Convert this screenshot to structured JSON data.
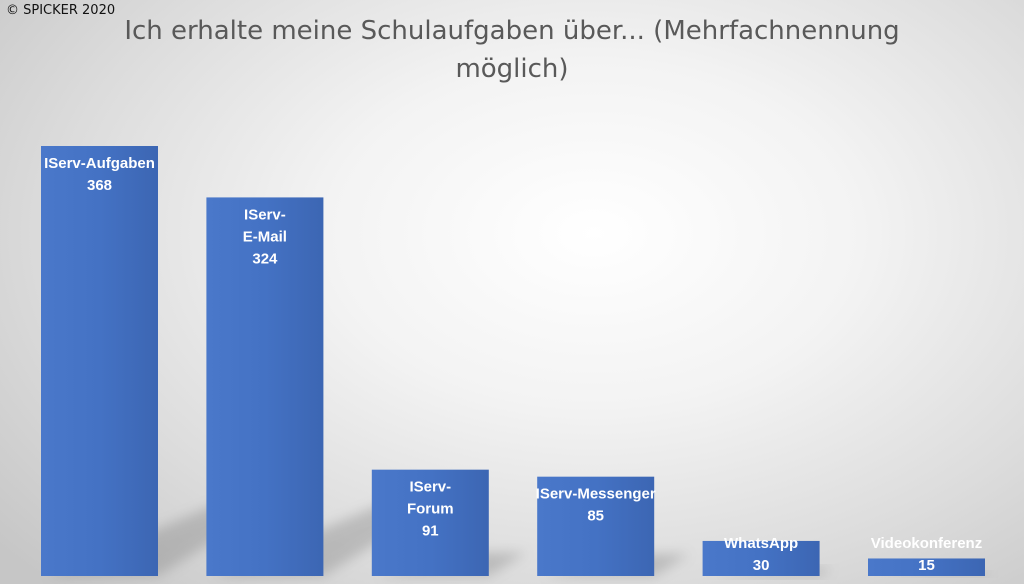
{
  "copyright": "© SPICKER 2020",
  "chart_data": {
    "type": "bar",
    "title": "Ich erhalte meine Schulaufgaben über... (Mehrfachnennung möglich)",
    "categories": [
      "IServ-Aufgaben",
      "IServ-E-Mail",
      "IServ-Forum",
      "IServ-Messenger",
      "WhatsApp",
      "Videokonferenz"
    ],
    "category_label_lines": [
      [
        "IServ-Aufgaben"
      ],
      [
        "IServ-",
        "E-Mail"
      ],
      [
        "IServ-",
        "Forum"
      ],
      [
        "IServ-Messenger"
      ],
      [
        "WhatsApp"
      ],
      [
        "Videokonferenz"
      ]
    ],
    "values": [
      368,
      324,
      91,
      85,
      30,
      15
    ],
    "value_labels": [
      "368",
      "324",
      "91",
      "85",
      "30",
      "15"
    ],
    "bar_color": "#4472c4",
    "grid": false,
    "legend": "none"
  }
}
